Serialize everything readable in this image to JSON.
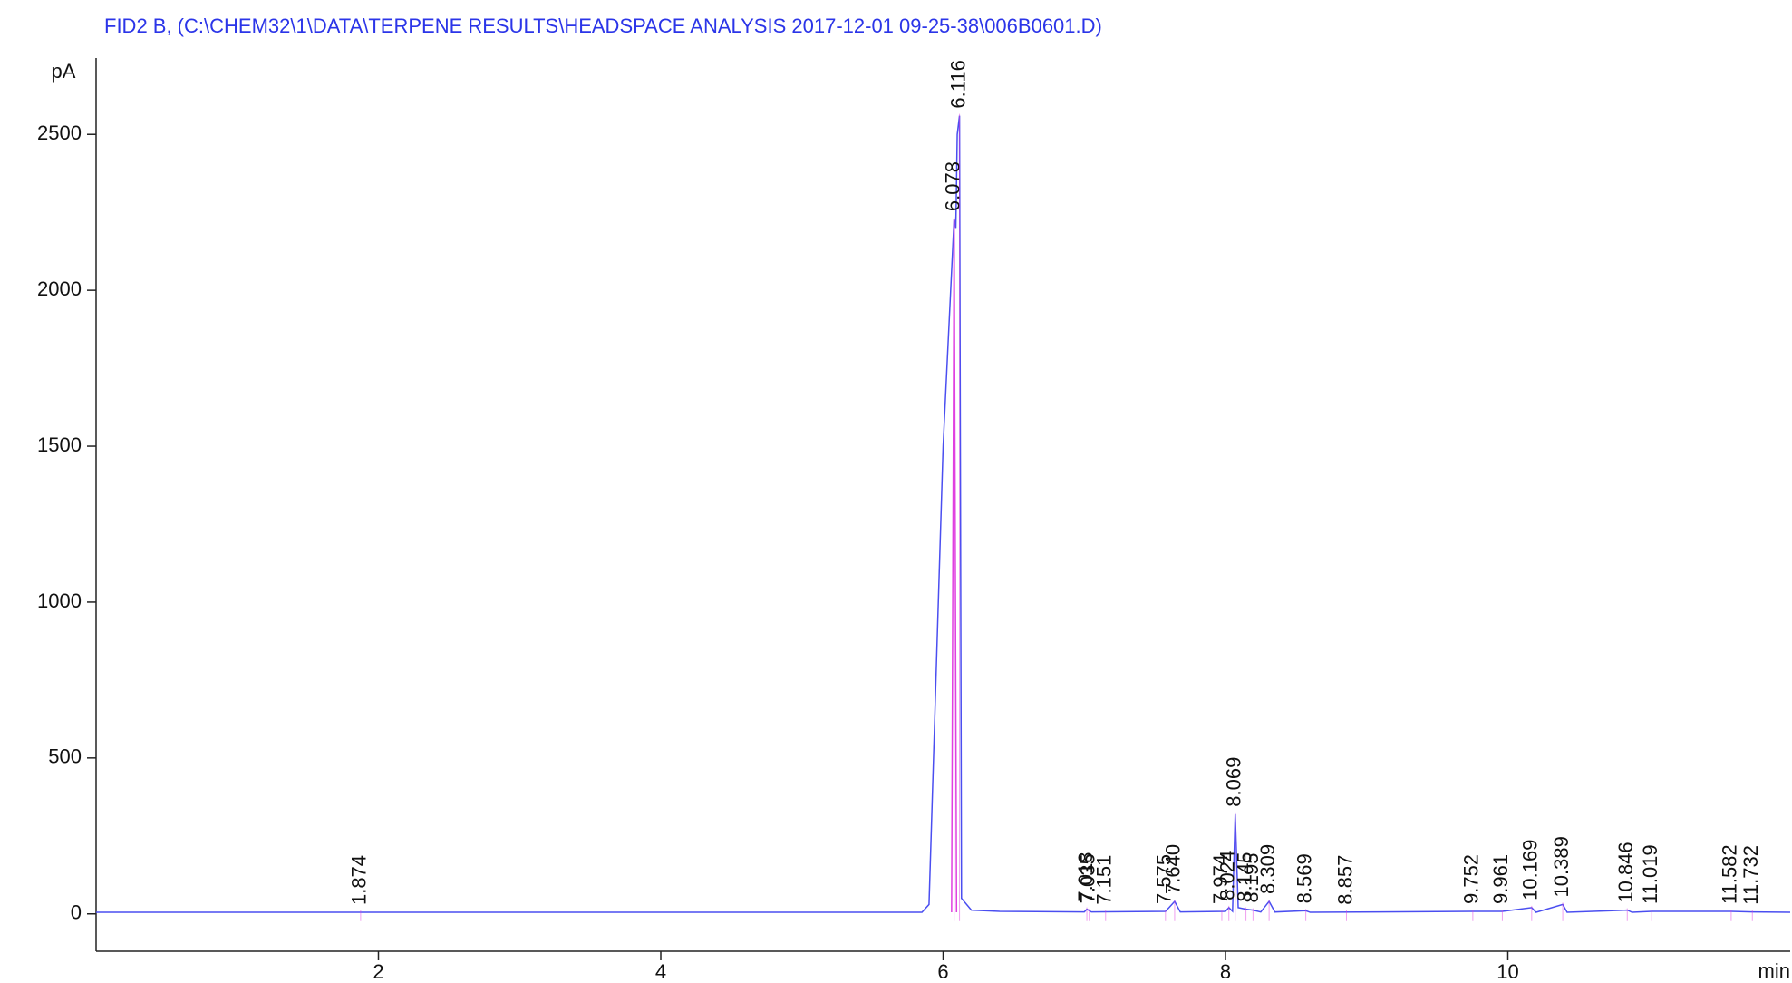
{
  "chart_data": {
    "type": "line",
    "title": "FID2 B,  (C:\\CHEM32\\1\\DATA\\TERPENE RESULTS\\HEADSPACE ANALYSIS 2017-12-01 09-25-38\\006B0601.D)",
    "ylabel": "pA",
    "xlabel": "min",
    "title_color": "#2b35e8",
    "xlim": [
      0,
      12
    ],
    "ylim": [
      -120,
      2745
    ],
    "xticks": [
      2,
      4,
      6,
      8,
      10
    ],
    "yticks": [
      0,
      500,
      1000,
      1500,
      2000,
      2500
    ],
    "series": [
      {
        "color": "#4a4ef0",
        "x": [
          0,
          5.85,
          5.9,
          6.0,
          6.078,
          6.09,
          6.1,
          6.116,
          6.13,
          6.2,
          6.4,
          7.0,
          7.018,
          7.05,
          7.575,
          7.6,
          7.64,
          7.68,
          8.0,
          8.024,
          8.05,
          8.069,
          8.09,
          8.145,
          8.195,
          8.25,
          8.309,
          8.35,
          8.569,
          8.6,
          9.752,
          9.961,
          10.169,
          10.2,
          10.389,
          10.42,
          10.846,
          10.88,
          11.019,
          11.582,
          11.732,
          12
        ],
        "values": [
          5,
          5,
          30,
          1500,
          2230,
          2200,
          2500,
          2560,
          50,
          12,
          8,
          6,
          15,
          6,
          8,
          20,
          40,
          6,
          8,
          20,
          8,
          320,
          20,
          15,
          12,
          6,
          40,
          6,
          10,
          5,
          8,
          8,
          20,
          5,
          30,
          5,
          12,
          5,
          8,
          8,
          6,
          5
        ]
      },
      {
        "color": "#e040e0",
        "x": [
          6.06,
          6.078,
          6.095
        ],
        "values": [
          5,
          2230,
          5
        ]
      }
    ],
    "peaks": {
      "x": [
        1.874,
        6.078,
        6.116,
        7.018,
        7.035,
        7.151,
        7.575,
        7.64,
        7.974,
        8.024,
        8.069,
        8.145,
        8.195,
        8.309,
        8.569,
        8.857,
        9.752,
        9.961,
        10.169,
        10.389,
        10.846,
        11.019,
        11.582,
        11.732
      ],
      "values": [
        5,
        2230,
        2560,
        15,
        10,
        6,
        8,
        40,
        8,
        20,
        320,
        15,
        12,
        40,
        10,
        6,
        8,
        8,
        20,
        30,
        12,
        8,
        8,
        6
      ],
      "labels": [
        "1.874",
        "6.078",
        "6.116",
        "7.018",
        "7.035",
        "7.151",
        "7.575",
        "7.640",
        "7.974",
        "8.024",
        "8.069",
        "8.145",
        "8.195",
        "8.309",
        "8.569",
        "8.857",
        "9.752",
        "9.961",
        "10.169",
        "10.389",
        "10.846",
        "11.019",
        "11.582",
        "11.732"
      ]
    }
  }
}
